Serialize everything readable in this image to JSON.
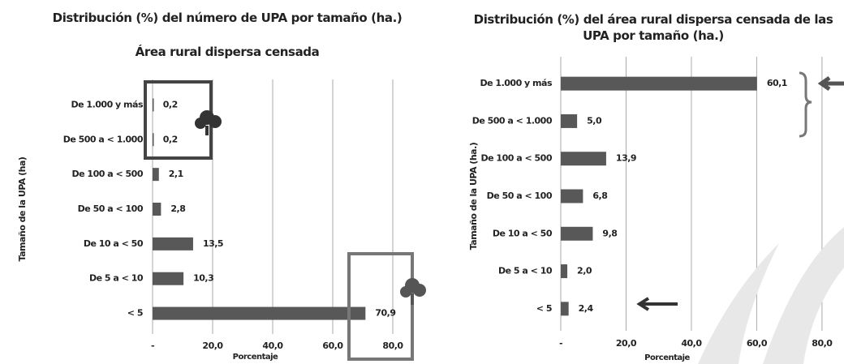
{
  "chart_data": [
    {
      "type": "bar",
      "orientation": "horizontal",
      "title": "Distribución (%) del número de UPA por tamaño (ha.)",
      "subtitle": "Área rural dispersa censada",
      "y_label": "Tamaño de la UPA (ha)",
      "x_label": "Porcentaje",
      "categories": [
        "De 1.000 y más",
        "De 500 a < 1.000",
        "De 100 a < 500",
        "De 50 a < 100",
        "De 10 a < 50",
        "De 5 a < 10",
        "< 5"
      ],
      "values": [
        0.2,
        0.2,
        2.1,
        2.8,
        13.5,
        10.3,
        70.9
      ],
      "value_labels": [
        "0,2",
        "0,2",
        "2,1",
        "2,8",
        "13,5",
        "10,3",
        "70,9"
      ],
      "color": "#585858",
      "xlim": [
        0,
        90
      ],
      "xticks": [
        {
          "value": 0,
          "label": "-"
        },
        {
          "value": 20,
          "label": "20,0"
        },
        {
          "value": 40,
          "label": "40,0"
        },
        {
          "value": 60,
          "label": "60,0"
        },
        {
          "value": 80,
          "label": "80,0"
        }
      ],
      "grid": true
    },
    {
      "type": "bar",
      "orientation": "horizontal",
      "title": "Distribución (%) del área rural dispersa censada de las UPA por tamaño (ha.)",
      "y_label": "Tamaño de la UPA (ha.)",
      "x_label": "Porcentaje",
      "categories": [
        "De 1.000 y más",
        "De 500 a < 1.000",
        "De 100 a < 500",
        "De 50 a < 100",
        "De 10 a < 50",
        "De 5 a < 10",
        "< 5"
      ],
      "values": [
        60.1,
        5.0,
        13.9,
        6.8,
        9.8,
        2.0,
        2.4
      ],
      "value_labels": [
        "60,1",
        "5,0",
        "13,9",
        "6,8",
        "9,8",
        "2,0",
        "2,4"
      ],
      "color": "#585858",
      "xlim": [
        0,
        85
      ],
      "xticks": [
        {
          "value": 0,
          "label": "-"
        },
        {
          "value": 20,
          "label": "20,0"
        },
        {
          "value": 40,
          "label": "40,0"
        },
        {
          "value": 60,
          "label": "60,0"
        },
        {
          "value": 80,
          "label": "80,0"
        }
      ],
      "grid": true
    }
  ]
}
